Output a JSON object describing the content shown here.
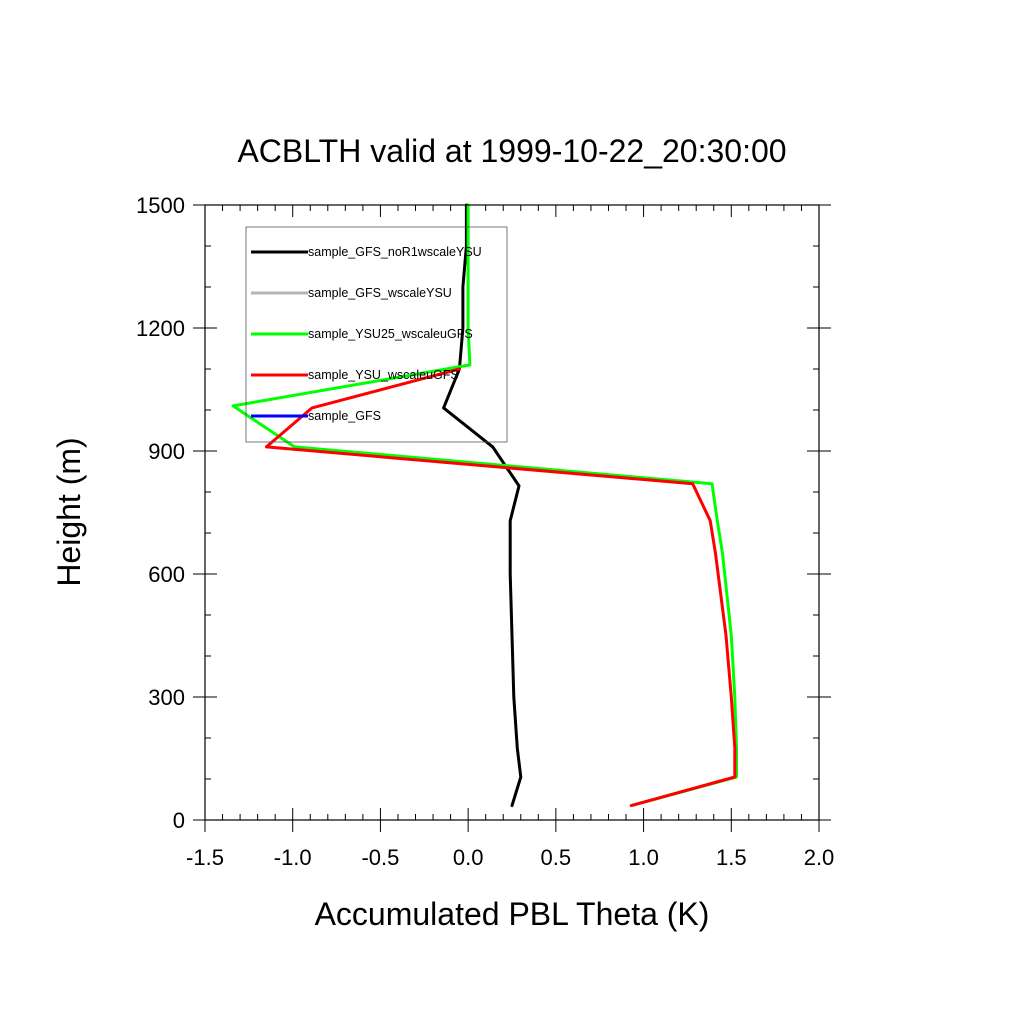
{
  "chart_data": {
    "type": "line",
    "title": "ACBLTH valid at 1999-10-22_20:30:00",
    "xlabel": "Accumulated PBL Theta (K)",
    "ylabel": "Height (m)",
    "xlim": [
      -1.5,
      2.0
    ],
    "ylim": [
      0,
      1500
    ],
    "xticks": [
      -1.5,
      -1.0,
      -0.5,
      0.0,
      0.5,
      1.0,
      1.5,
      2.0
    ],
    "xtick_labels": [
      "-1.5",
      "-1.0",
      "-0.5",
      "0.0",
      "0.5",
      "1.0",
      "1.5",
      "2.0"
    ],
    "yticks": [
      0,
      300,
      600,
      900,
      1200,
      1500
    ],
    "ytick_labels": [
      "0",
      "300",
      "600",
      "900",
      "1200",
      "1500"
    ],
    "grid": false,
    "legend_position": "top-left",
    "series": [
      {
        "name": "sample_GFS_noR1wscaleYSU",
        "color": "#000000",
        "points": [
          [
            0.25,
            35
          ],
          [
            0.3,
            105
          ],
          [
            0.28,
            175
          ],
          [
            0.26,
            300
          ],
          [
            0.25,
            450
          ],
          [
            0.24,
            600
          ],
          [
            0.24,
            730
          ],
          [
            0.29,
            815
          ],
          [
            0.14,
            910
          ],
          [
            -0.14,
            1005
          ],
          [
            -0.05,
            1100
          ],
          [
            -0.03,
            1200
          ],
          [
            -0.03,
            1300
          ],
          [
            -0.01,
            1400
          ],
          [
            -0.01,
            1500
          ]
        ]
      },
      {
        "name": "sample_GFS_wscaleYSU",
        "color": "#b4b4b4",
        "points": []
      },
      {
        "name": "sample_YSU25_wscaleuGFS",
        "color": "#00ff00",
        "points": [
          [
            0.93,
            35
          ],
          [
            1.53,
            105
          ],
          [
            1.53,
            175
          ],
          [
            1.52,
            300
          ],
          [
            1.5,
            450
          ],
          [
            1.45,
            650
          ],
          [
            1.42,
            730
          ],
          [
            1.39,
            820
          ],
          [
            -0.99,
            910
          ],
          [
            -1.34,
            1010
          ],
          [
            0.01,
            1110
          ],
          [
            0.0,
            1200
          ],
          [
            0.0,
            1300
          ],
          [
            0.0,
            1400
          ],
          [
            0.0,
            1500
          ]
        ]
      },
      {
        "name": "sample_YSU_wscaleuGFS",
        "color": "#ff0000",
        "points": [
          [
            0.93,
            35
          ],
          [
            1.52,
            105
          ],
          [
            1.52,
            175
          ],
          [
            1.5,
            300
          ],
          [
            1.47,
            450
          ],
          [
            1.41,
            650
          ],
          [
            1.38,
            730
          ],
          [
            1.28,
            820
          ],
          [
            -1.15,
            910
          ],
          [
            -0.89,
            1005
          ],
          [
            -0.05,
            1100
          ]
        ]
      },
      {
        "name": "sample_GFS",
        "color": "#0000ff",
        "points": []
      }
    ]
  }
}
